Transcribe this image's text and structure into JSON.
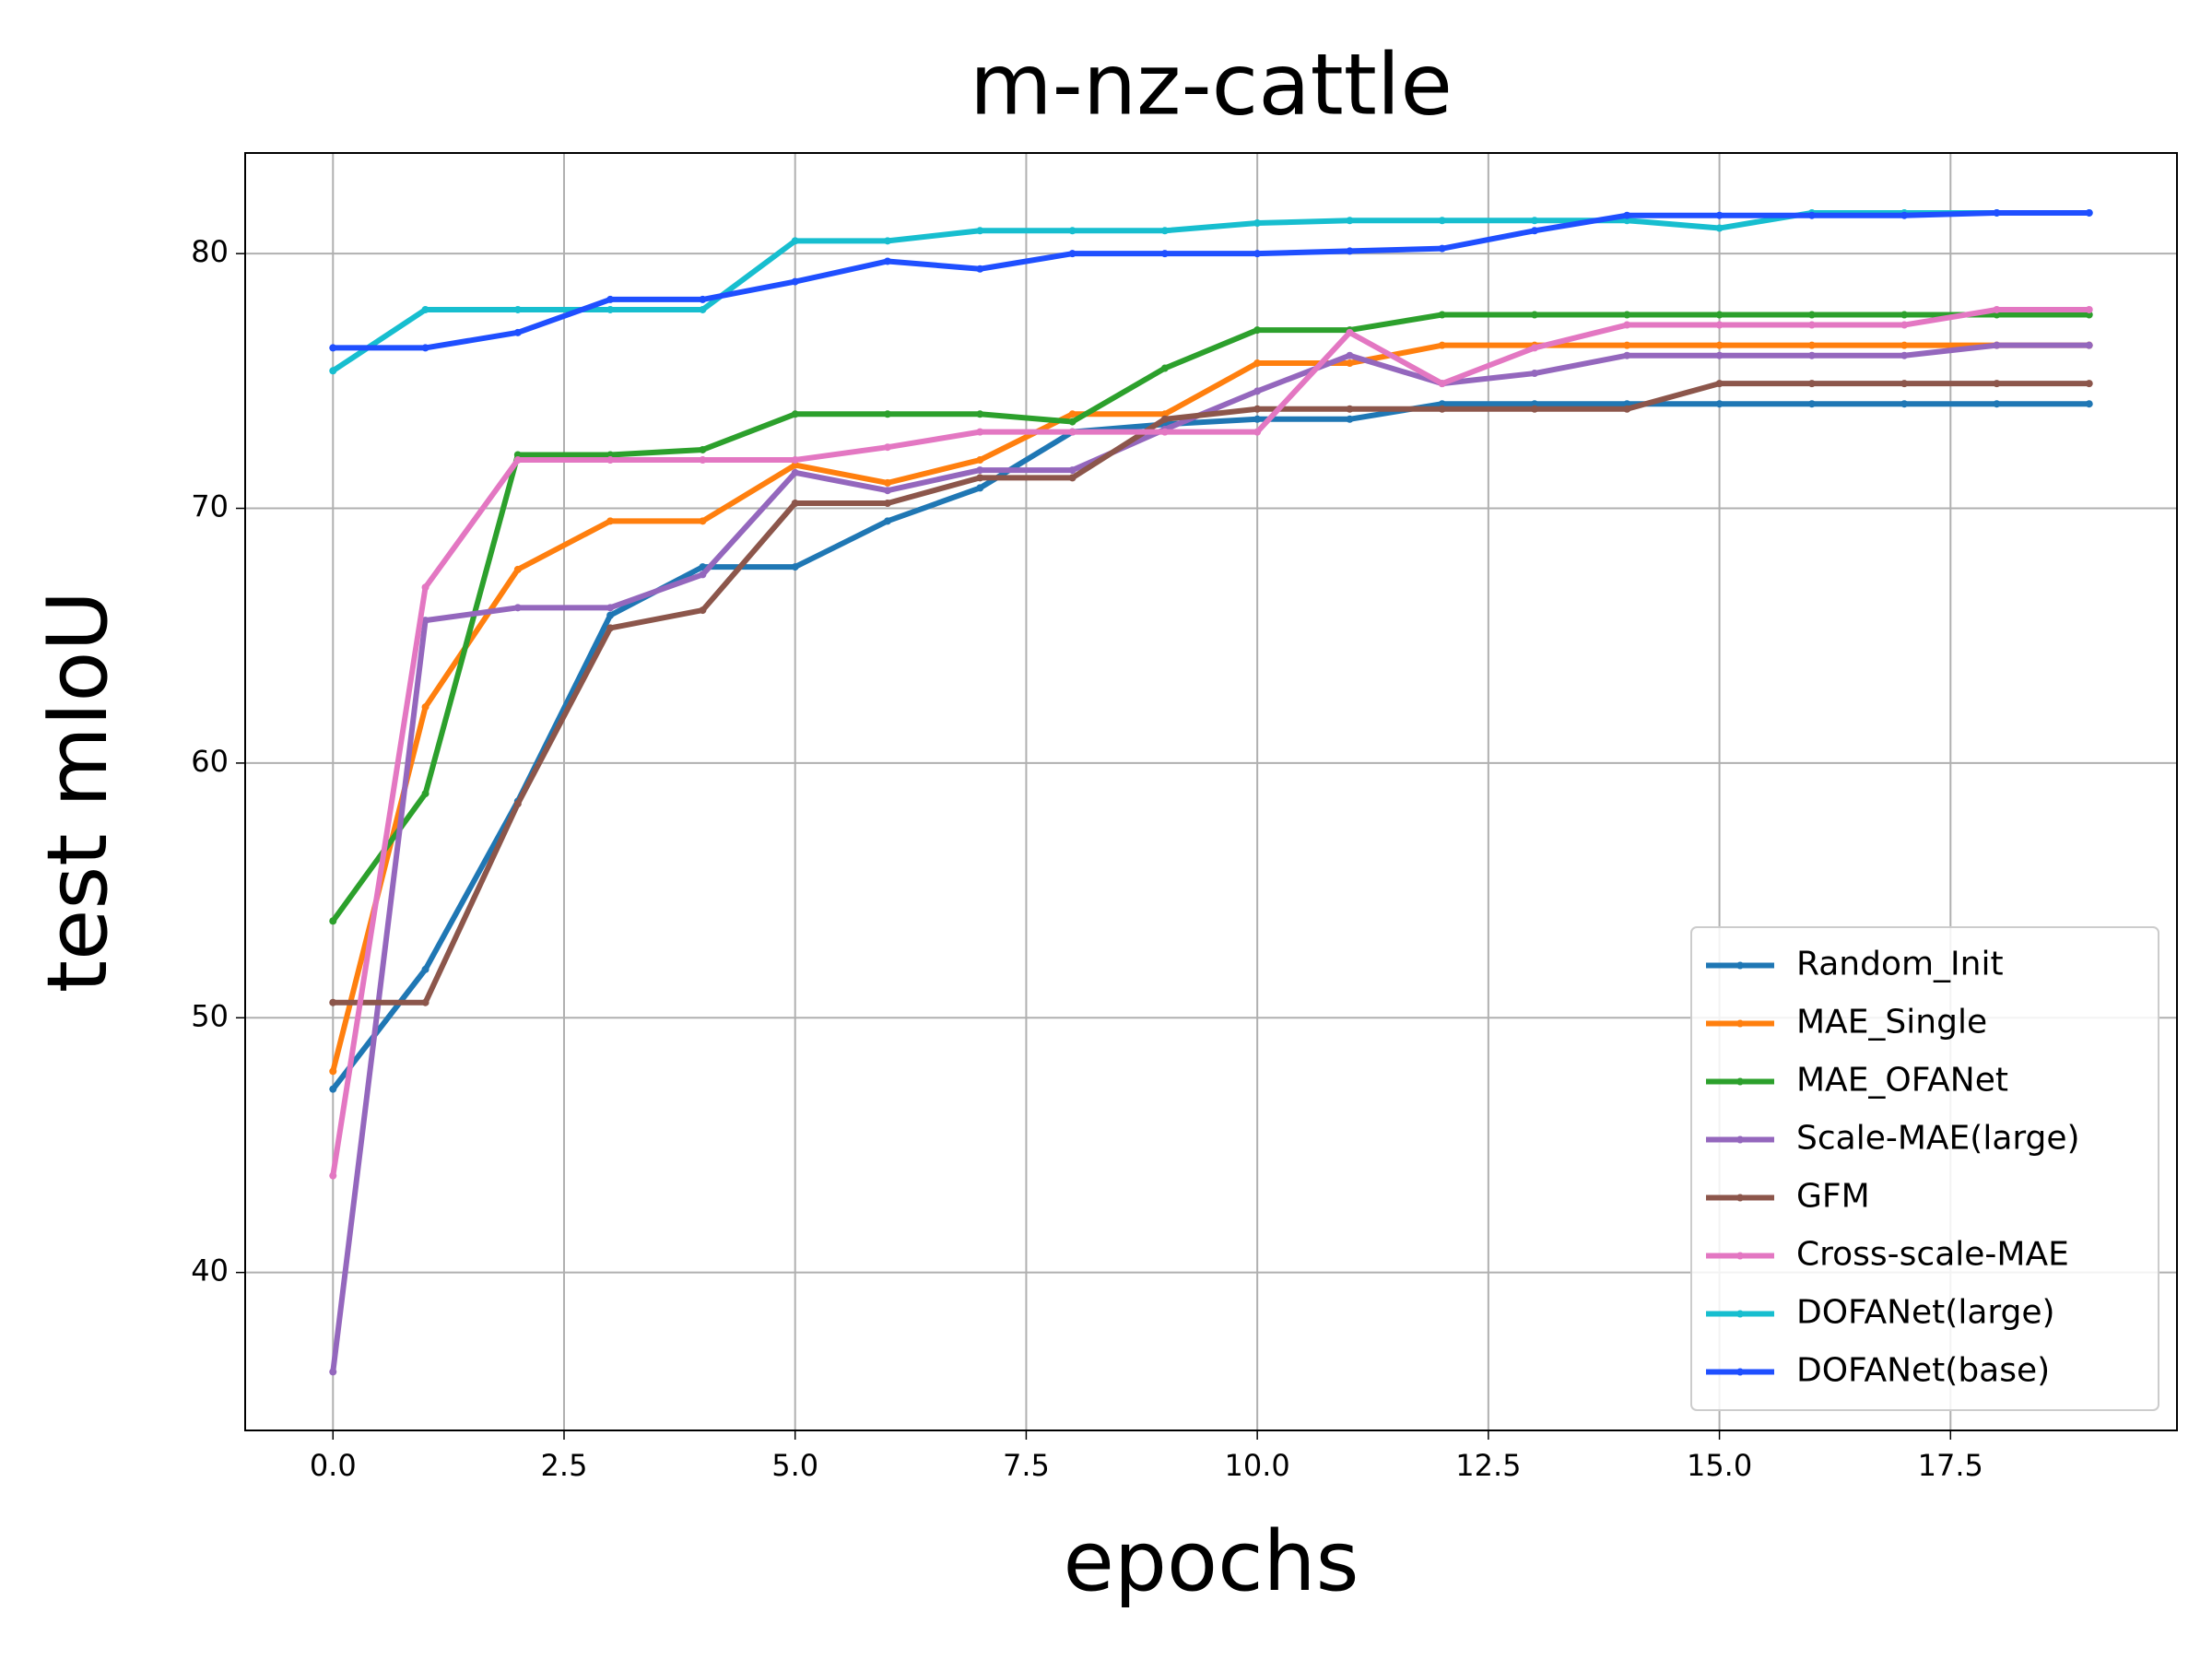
{
  "chart_data": {
    "type": "line",
    "title": "m-nz-cattle",
    "xlabel": "epochs",
    "ylabel": "test mIoU",
    "x": [
      0,
      1,
      2,
      3,
      4,
      5,
      6,
      7,
      8,
      9,
      10,
      11,
      12,
      13,
      14,
      15,
      16,
      17,
      18,
      19
    ],
    "series": [
      {
        "name": "Random_Init",
        "color": "#1f77b4",
        "values": [
          47.2,
          51.9,
          58.5,
          65.8,
          67.7,
          67.7,
          69.5,
          70.8,
          73.0,
          73.3,
          73.5,
          73.5,
          74.1,
          74.1,
          74.1,
          74.1,
          74.1,
          74.1,
          74.1,
          74.1
        ]
      },
      {
        "name": "MAE_Single",
        "color": "#ff7f0e",
        "values": [
          47.9,
          62.2,
          67.6,
          69.5,
          69.5,
          71.7,
          71.0,
          71.9,
          73.7,
          73.7,
          75.7,
          75.7,
          76.4,
          76.4,
          76.4,
          76.4,
          76.4,
          76.4,
          76.4,
          76.4
        ]
      },
      {
        "name": "MAE_OFANet",
        "color": "#2ca02c",
        "values": [
          53.8,
          58.8,
          72.1,
          72.1,
          72.3,
          73.7,
          73.7,
          73.7,
          73.4,
          75.5,
          77.0,
          77.0,
          77.6,
          77.6,
          77.6,
          77.6,
          77.6,
          77.6,
          77.6,
          77.6
        ]
      },
      {
        "name": "Scale-MAE(large)",
        "color": "#9467bd",
        "values": [
          36.1,
          65.6,
          66.1,
          66.1,
          67.4,
          71.4,
          70.7,
          71.5,
          71.5,
          73.1,
          74.6,
          76.0,
          74.9,
          75.3,
          76.0,
          76.0,
          76.0,
          76.0,
          76.4,
          76.4
        ]
      },
      {
        "name": "GFM",
        "color": "#8c564b",
        "values": [
          50.6,
          50.6,
          58.4,
          65.3,
          66.0,
          70.2,
          70.2,
          71.2,
          71.2,
          73.5,
          73.9,
          73.9,
          73.9,
          73.9,
          73.9,
          74.9,
          74.9,
          74.9,
          74.9,
          74.9
        ]
      },
      {
        "name": "Cross-scale-MAE",
        "color": "#e377c2",
        "values": [
          43.8,
          66.9,
          71.9,
          71.9,
          71.9,
          71.9,
          72.4,
          73.0,
          73.0,
          73.0,
          73.0,
          76.9,
          74.9,
          76.3,
          77.2,
          77.2,
          77.2,
          77.2,
          77.8,
          77.8
        ]
      },
      {
        "name": "DOFANet(large)",
        "color": "#17becf",
        "values": [
          75.4,
          77.8,
          77.8,
          77.8,
          77.8,
          80.5,
          80.5,
          80.9,
          80.9,
          80.9,
          81.2,
          81.3,
          81.3,
          81.3,
          81.3,
          81.0,
          81.6,
          81.6,
          81.6,
          81.6
        ]
      },
      {
        "name": "DOFANet(base)",
        "color": "#1f4fff",
        "values": [
          76.3,
          76.3,
          76.9,
          78.2,
          78.2,
          78.9,
          79.7,
          79.4,
          80.0,
          80.0,
          80.0,
          80.1,
          80.2,
          80.9,
          81.5,
          81.5,
          81.5,
          81.5,
          81.6,
          81.6
        ]
      }
    ],
    "xlim": [
      -0.95,
      19.95
    ],
    "ylim": [
      33.8,
      83.95
    ],
    "xticks": [
      {
        "value": 0,
        "label": "0.0"
      },
      2.5,
      {
        "value": 5,
        "label": "5.0"
      },
      7.5,
      {
        "value": 10,
        "label": "10.0"
      },
      12.5,
      {
        "value": 15,
        "label": "15.0"
      },
      17.5
    ],
    "yticks": [
      40,
      50,
      60,
      70,
      80
    ],
    "grid": true,
    "legend": "lower right"
  }
}
